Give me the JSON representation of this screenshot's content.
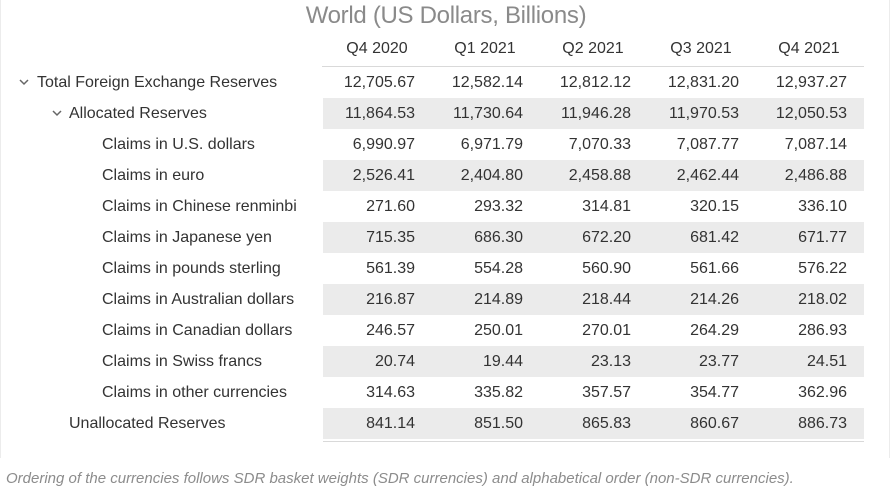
{
  "title": "World (US Dollars, Billions)",
  "columns": [
    "Q4 2020",
    "Q1 2021",
    "Q2 2021",
    "Q3 2021",
    "Q4 2021"
  ],
  "rows": [
    {
      "label": "Total Foreign Exchange Reserves",
      "values": [
        "12,705.67",
        "12,582.14",
        "12,812.12",
        "12,831.20",
        "12,937.27"
      ]
    },
    {
      "label": "Allocated Reserves",
      "values": [
        "11,864.53",
        "11,730.64",
        "11,946.28",
        "11,970.53",
        "12,050.53"
      ]
    },
    {
      "label": "Claims in U.S. dollars",
      "values": [
        "6,990.97",
        "6,971.79",
        "7,070.33",
        "7,087.77",
        "7,087.14"
      ]
    },
    {
      "label": "Claims in euro",
      "values": [
        "2,526.41",
        "2,404.80",
        "2,458.88",
        "2,462.44",
        "2,486.88"
      ]
    },
    {
      "label": "Claims in Chinese renminbi",
      "values": [
        "271.60",
        "293.32",
        "314.81",
        "320.15",
        "336.10"
      ]
    },
    {
      "label": "Claims in Japanese yen",
      "values": [
        "715.35",
        "686.30",
        "672.20",
        "681.42",
        "671.77"
      ]
    },
    {
      "label": "Claims in pounds sterling",
      "values": [
        "561.39",
        "554.28",
        "560.90",
        "561.66",
        "576.22"
      ]
    },
    {
      "label": "Claims in Australian dollars",
      "values": [
        "216.87",
        "214.89",
        "218.44",
        "214.26",
        "218.02"
      ]
    },
    {
      "label": "Claims in Canadian dollars",
      "values": [
        "246.57",
        "250.01",
        "270.01",
        "264.29",
        "286.93"
      ]
    },
    {
      "label": "Claims in Swiss francs",
      "values": [
        "20.74",
        "19.44",
        "23.13",
        "23.77",
        "24.51"
      ]
    },
    {
      "label": "Claims in other currencies",
      "values": [
        "314.63",
        "335.82",
        "357.57",
        "354.77",
        "362.96"
      ]
    },
    {
      "label": "Unallocated Reserves",
      "values": [
        "841.14",
        "851.50",
        "865.83",
        "860.67",
        "886.73"
      ]
    }
  ],
  "footnote": "Ordering of the currencies follows SDR basket weights (SDR currencies) and alphabetical order (non-SDR currencies).",
  "icons": {
    "expand_toggle": "chevron-down-icon"
  },
  "colors": {
    "title": "#8a8a8a",
    "band": "#ebebeb",
    "footnote": "#8c8c8c"
  }
}
